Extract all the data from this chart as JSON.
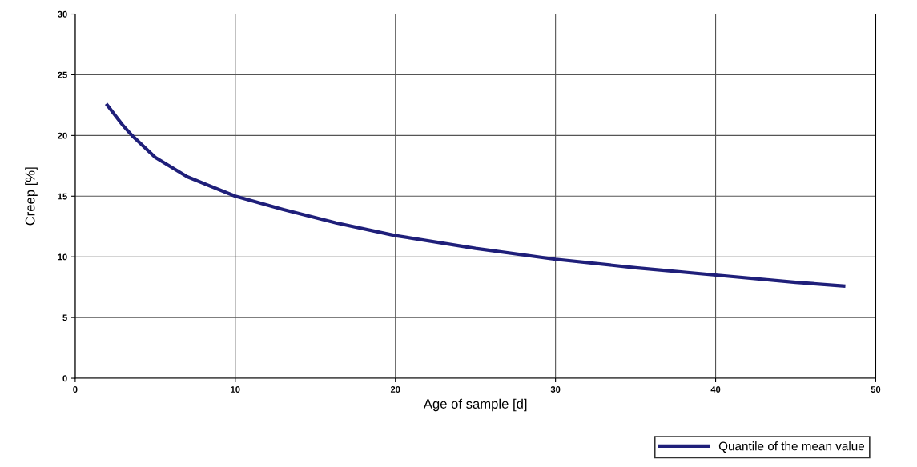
{
  "chart_data": {
    "type": "line",
    "xlabel": "Age of sample [d]",
    "ylabel": "Creep [%]",
    "series": [
      {
        "name": "Quantile of the mean value",
        "color": "#1f1f7a",
        "x": [
          2,
          3,
          3.55,
          5,
          7,
          10,
          13,
          16.3,
          20,
          25,
          30,
          35,
          40,
          45,
          48
        ],
        "values": [
          22.5,
          20.8,
          20,
          18.2,
          16.6,
          15,
          13.9,
          12.8,
          11.75,
          10.7,
          9.8,
          9.1,
          8.5,
          7.9,
          7.6
        ]
      }
    ],
    "xlim": [
      0,
      50
    ],
    "xticks": [
      0,
      10,
      20,
      30,
      40,
      50
    ],
    "ylim": [
      0,
      30
    ],
    "yticks": [
      0,
      5,
      10,
      15,
      20,
      25,
      30
    ],
    "grid": true,
    "legend": "bottom right",
    "marker": "none",
    "line_style": "solid"
  }
}
